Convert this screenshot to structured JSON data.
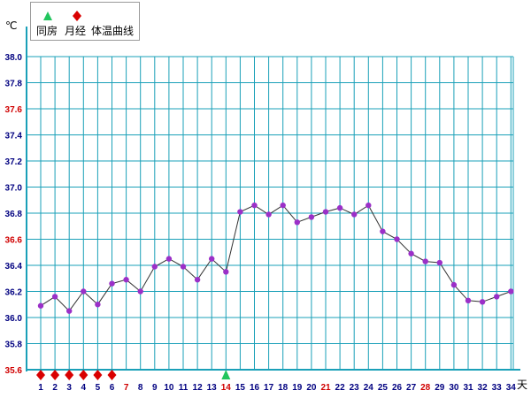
{
  "legend": {
    "items": [
      {
        "label": "同房",
        "icon": "green-triangle-icon",
        "color": "#22c55e"
      },
      {
        "label": "月经",
        "icon": "red-diamond-icon",
        "color": "#d90000"
      },
      {
        "label": "体温曲线"
      }
    ]
  },
  "axis": {
    "y_unit": "℃",
    "x_unit": "天"
  },
  "colors": {
    "grid": "#1aa0b8",
    "line": "#333333",
    "marker": "#9b30c8",
    "highlight_tick": "#d00000",
    "tick": "#000080"
  },
  "chart_data": {
    "type": "line",
    "title": "",
    "xlabel": "天",
    "ylabel": "℃",
    "ylim": [
      35.6,
      38.0
    ],
    "yticks": [
      "38.0",
      "37.8",
      "37.6",
      "37.4",
      "37.2",
      "37.0",
      "36.8",
      "36.6",
      "36.4",
      "36.2",
      "36.0",
      "35.8",
      "35.6"
    ],
    "highlight_yticks": [
      "37.6",
      "36.6",
      "35.6"
    ],
    "x": [
      1,
      2,
      3,
      4,
      5,
      6,
      7,
      8,
      9,
      10,
      11,
      12,
      13,
      14,
      15,
      16,
      17,
      18,
      19,
      20,
      21,
      22,
      23,
      24,
      25,
      26,
      27,
      28,
      29,
      30,
      31,
      32,
      33,
      34
    ],
    "highlight_xticks": [
      7,
      14,
      21,
      28
    ],
    "grid": true,
    "series": [
      {
        "values": [
          36.09,
          36.16,
          36.05,
          36.2,
          36.1,
          36.26,
          36.29,
          36.2,
          36.39,
          36.45,
          36.39,
          36.29,
          36.45,
          36.35,
          36.81,
          36.86,
          36.79,
          36.86,
          36.73,
          36.77,
          36.81,
          36.84,
          36.79,
          36.86,
          36.66,
          36.6,
          36.49,
          36.43,
          36.42,
          36.25,
          36.13,
          36.12,
          36.16,
          36.2
        ]
      }
    ],
    "menstruation_days": [
      1,
      2,
      3,
      4,
      5,
      6
    ],
    "intercourse_days": [
      14
    ]
  }
}
